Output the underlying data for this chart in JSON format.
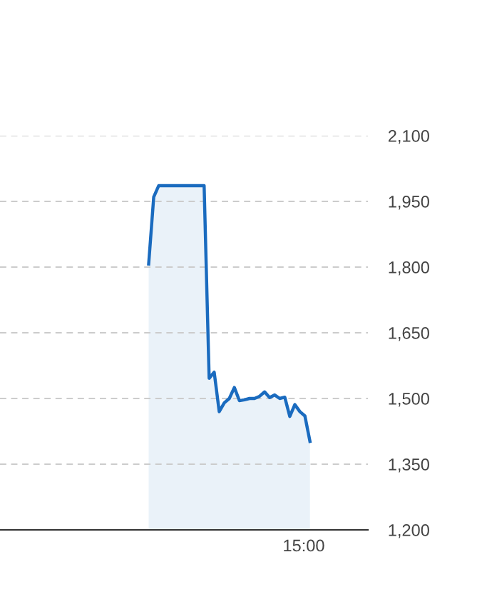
{
  "chart_data": {
    "type": "area",
    "categories": [
      null,
      null,
      null,
      null,
      null,
      null,
      null,
      null,
      null,
      null,
      null,
      null,
      null,
      null,
      null,
      null,
      null,
      null,
      null,
      null,
      null,
      null,
      null,
      null,
      null,
      null,
      null,
      null,
      null,
      null,
      null,
      null,
      null,
      null,
      null,
      null,
      null,
      null,
      null,
      null,
      null,
      null,
      null,
      null,
      null,
      null,
      null,
      null,
      null,
      null,
      null,
      null,
      null,
      null,
      null,
      null,
      null,
      null,
      null,
      null,
      null,
      null,
      null,
      null,
      null,
      null,
      null,
      null,
      null,
      null,
      null,
      null,
      null
    ],
    "series": [
      {
        "color": "#1a6bbf",
        "values": [
          null,
          null,
          null,
          null,
          null,
          null,
          null,
          null,
          null,
          null,
          null,
          null,
          null,
          null,
          null,
          null,
          null,
          null,
          null,
          null,
          null,
          null,
          null,
          null,
          null,
          null,
          null,
          null,
          null,
          1807,
          1960,
          1986,
          1986,
          1986,
          1986,
          1986,
          1986,
          1986,
          1986,
          1986,
          1986,
          1546,
          1560,
          1470,
          1490,
          1500,
          1525,
          1495,
          1497,
          1500,
          1500,
          1505,
          1515,
          1502,
          1508,
          1500,
          1503,
          1459,
          1486,
          1470,
          1460,
          1402,
          null,
          null,
          null,
          null,
          null,
          null,
          null,
          null,
          null,
          null,
          null
        ]
      }
    ],
    "ylim": [
      1200,
      2100
    ],
    "yticks": [
      {
        "value": 1200,
        "label": "1,200"
      },
      {
        "value": 1350,
        "label": "1,350"
      },
      {
        "value": 1500,
        "label": "1,500"
      },
      {
        "value": 1650,
        "label": "1,650"
      },
      {
        "value": 1800,
        "label": "1,800"
      },
      {
        "value": 1950,
        "label": "1,950"
      },
      {
        "value": 2100,
        "label": "2,100"
      }
    ],
    "annotations": [
      "15:00"
    ],
    "grid": "y"
  }
}
